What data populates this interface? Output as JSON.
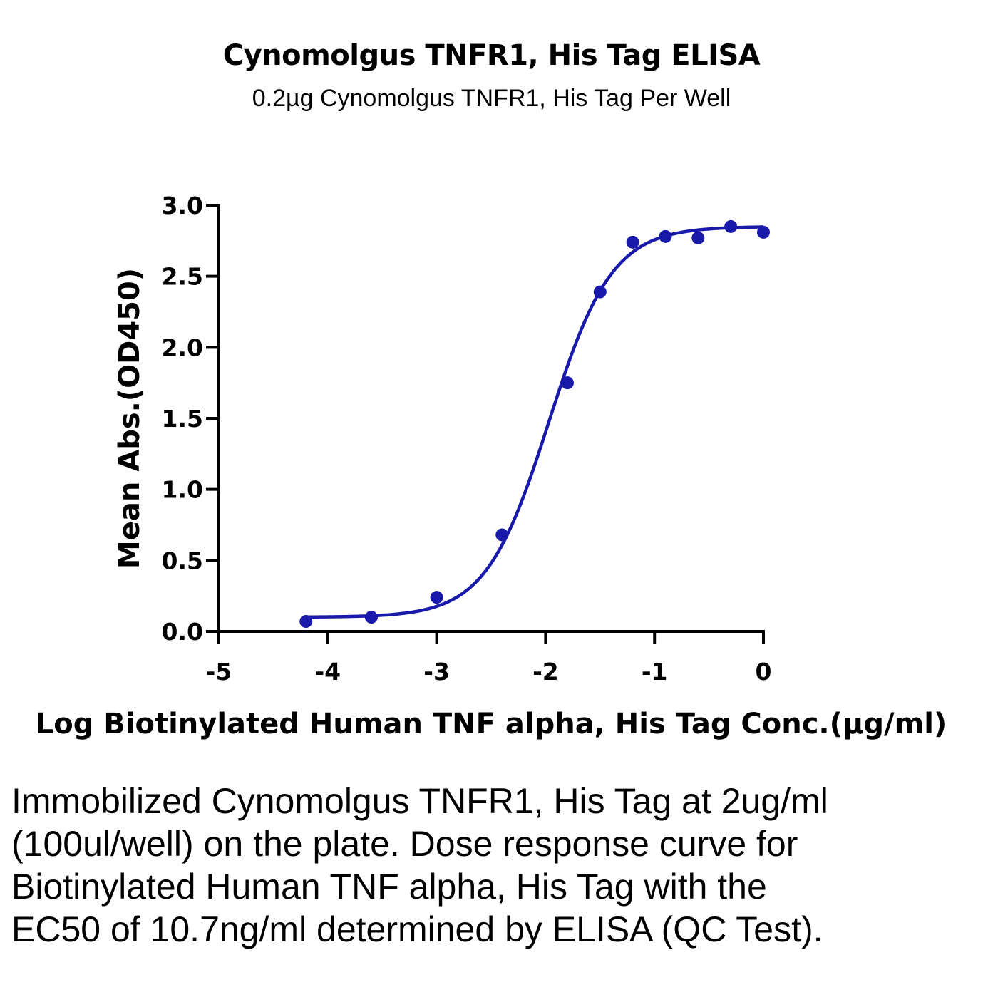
{
  "chart_data": {
    "type": "scatter",
    "title": "Cynomolgus TNFR1, His Tag ELISA",
    "subtitle": "0.2µg Cynomolgus TNFR1, His Tag Per Well",
    "xlabel": "Log Biotinylated Human TNF alpha, His Tag Conc.(µg/ml)",
    "ylabel": "Mean Abs.(OD450)",
    "xlim": [
      -5,
      0
    ],
    "ylim": [
      0,
      3
    ],
    "x_ticks": [
      -5,
      -4,
      -3,
      -2,
      -1,
      0
    ],
    "x_tick_labels": [
      "-5",
      "-4",
      "-3",
      "-2",
      "-1",
      "0"
    ],
    "y_ticks": [
      0,
      0.5,
      1,
      1.5,
      2,
      2.5,
      3
    ],
    "y_tick_labels": [
      "0.0",
      "0.5",
      "1.0",
      "1.5",
      "2.0",
      "2.5",
      "3.0"
    ],
    "grid": false,
    "series": [
      {
        "color": "#1a1aaa",
        "points": [
          {
            "x": -4.2,
            "y": 0.07
          },
          {
            "x": -3.6,
            "y": 0.1
          },
          {
            "x": -3.0,
            "y": 0.24
          },
          {
            "x": -2.4,
            "y": 0.68
          },
          {
            "x": -1.8,
            "y": 1.75
          },
          {
            "x": -1.5,
            "y": 2.39
          },
          {
            "x": -1.2,
            "y": 2.74
          },
          {
            "x": -0.9,
            "y": 2.78
          },
          {
            "x": -0.6,
            "y": 2.77
          },
          {
            "x": -0.3,
            "y": 2.85
          },
          {
            "x": 0.0,
            "y": 2.81
          }
        ],
        "fit": {
          "model": "4PL",
          "bottom": 0.1,
          "top": 2.85,
          "log_ec50": -1.97,
          "hill_slope": 1.5,
          "x_range": [
            -4.2,
            0.0
          ]
        }
      }
    ]
  },
  "caption": "Immobilized Cynomolgus TNFR1, His Tag at 2ug/ml (100ul/well) on the plate. Dose response curve for Biotinylated Human TNF alpha, His Tag with the EC50 of 10.7ng/ml determined by ELISA (QC Test)."
}
